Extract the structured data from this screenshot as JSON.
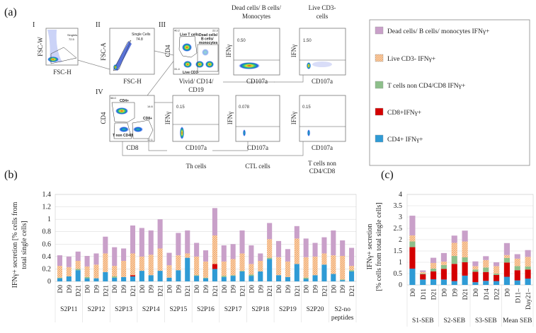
{
  "panels": {
    "a": "(a)",
    "b": "(b)",
    "c": "(c)"
  },
  "flow": {
    "roman": [
      "I",
      "II",
      "III",
      "IV"
    ],
    "plot1": {
      "y": "FSC-W",
      "x": "FSC-H",
      "gate": "Singlets",
      "value": "72.5"
    },
    "plot2": {
      "y": "FSC-A",
      "x": "FSC-H",
      "gate": "Single Cells",
      "value": "74.8"
    },
    "plot3": {
      "y": "CD4",
      "x1": "Vivid/ CD14/",
      "x2": "CD19",
      "gate_live": "Live T cells",
      "gate_dead1": "Dead cells/",
      "gate_dead2": "B cells/",
      "gate_dead3": "monocytes",
      "gate_cd3neg": "Live CD3-",
      "v1": "40.2",
      "v2": "22.3",
      "v3": "31.4"
    },
    "plot4": {
      "y": "CD4",
      "x": "CD8",
      "gate_cd4": "CD4+",
      "gate_cd8": "CD8+",
      "gate_non": "T non CD4/8",
      "v1": "58.0",
      "v2": "14.6",
      "v3": "12.1"
    },
    "dead": {
      "title1": "Dead cells/ B cells/",
      "title2": "Monocytes",
      "y": "IFNγ",
      "x": "CD107a",
      "value": "0.50"
    },
    "live": {
      "title1": "Live CD3-",
      "title2": "cells",
      "y": "IFNγ",
      "x": "CD107a",
      "value": "1.50"
    },
    "th": {
      "y": "IFNγ",
      "x": "CD107a",
      "value": "0.15",
      "caption": "Th cells"
    },
    "ctl": {
      "y": "IFNγ",
      "x": "CD107a",
      "value": "0.078",
      "caption": "CTL cells"
    },
    "non": {
      "y": "IFNγ",
      "x": "CD107a",
      "value": "0.15",
      "caption1": "T cells non",
      "caption2": "CD4/CD8"
    }
  },
  "legend": [
    {
      "label": "Dead cells/ B cells/ monocytes IFNγ+",
      "color": "#c9a0c9",
      "hatched": false
    },
    {
      "label": "Live CD3- IFNγ+",
      "color": "#f7c08e",
      "hatched": true
    },
    {
      "label": "T cells non CD4/CD8 IFNγ+",
      "color": "#8dbf8a",
      "hatched": false
    },
    {
      "label": "CD8+IFNγ+",
      "color": "#d40000",
      "hatched": false
    },
    {
      "label": "CD4+ IFNγ+",
      "color": "#2f9bd5",
      "hatched": false
    }
  ],
  "chart_data": [
    {
      "type": "bar",
      "stacked": true,
      "ylabel": [
        "IFNγ+ secretion [% cells from",
        "total single cells]"
      ],
      "ylim": [
        0,
        1.4
      ],
      "yticks": [
        "0",
        "0.2",
        "0.4",
        "0.6",
        "0.8",
        "1",
        "1.2",
        "1.4"
      ],
      "grid": true,
      "groups": [
        {
          "label": [
            "S2P11"
          ],
          "days": [
            "D0",
            "D9",
            "D21"
          ]
        },
        {
          "label": [
            "S2P12"
          ],
          "days": [
            "D0",
            "D9",
            "D21"
          ]
        },
        {
          "label": [
            "S2P13"
          ],
          "days": [
            "D0",
            "D9",
            "D21"
          ]
        },
        {
          "label": [
            "S2P14"
          ],
          "days": [
            "D0",
            "D9",
            "D21"
          ]
        },
        {
          "label": [
            "S2P15"
          ],
          "days": [
            "D0",
            "D9",
            "D21"
          ]
        },
        {
          "label": [
            "S2P16"
          ],
          "days": [
            "D0",
            "D9",
            "D21"
          ]
        },
        {
          "label": [
            "S2P17"
          ],
          "days": [
            "D0",
            "D9",
            "D21"
          ]
        },
        {
          "label": [
            "S2P18"
          ],
          "days": [
            "D0",
            "D9",
            "D21"
          ]
        },
        {
          "label": [
            "S2P19"
          ],
          "days": [
            "D0",
            "D9",
            "D21"
          ]
        },
        {
          "label": [
            "S2P20"
          ],
          "days": [
            "D0",
            "D9",
            "D21"
          ]
        },
        {
          "label": [
            "S2-no",
            "peptides"
          ],
          "days": [
            "D0",
            "D9",
            "D21"
          ]
        }
      ],
      "series": [
        {
          "name": "CD4+ IFNγ+",
          "values": [
            0.05,
            0.08,
            0.18,
            0.05,
            0.05,
            0.15,
            0.06,
            0.07,
            0.08,
            0.17,
            0.1,
            0.17,
            0.06,
            0.18,
            0.38,
            0.09,
            0.05,
            0.2,
            0.07,
            0.09,
            0.16,
            0.09,
            0.16,
            0.36,
            0.1,
            0.07,
            0.28,
            0.04,
            0.1,
            0.27,
            0.12,
            0.02,
            0.16
          ]
        },
        {
          "name": "CD8+IFNγ+",
          "values": [
            0,
            0,
            0,
            0,
            0,
            0,
            0,
            0,
            0.02,
            0,
            0,
            0,
            0,
            0,
            0,
            0,
            0,
            0.08,
            0,
            0,
            0,
            0,
            0,
            0,
            0,
            0,
            0,
            0,
            0,
            0,
            0,
            0,
            0
          ]
        },
        {
          "name": "T cells non CD4/CD8 IFNγ+",
          "values": [
            0.01,
            0,
            0.02,
            0.02,
            0,
            0,
            0.02,
            0,
            0,
            0,
            0,
            0,
            0,
            0,
            0,
            0.01,
            0.01,
            0,
            0.02,
            0.01,
            0.01,
            0.02,
            0,
            0.02,
            0,
            0,
            0,
            0.02,
            0,
            0,
            0,
            0.01,
            0.02
          ]
        },
        {
          "name": "Live CD3- IFNγ+",
          "values": [
            0.19,
            0.15,
            0.13,
            0.17,
            0.22,
            0.3,
            0.17,
            0.26,
            0.35,
            0.23,
            0.33,
            0.36,
            0.2,
            0.24,
            0.07,
            0.3,
            0.26,
            0.46,
            0.23,
            0.26,
            0.28,
            0.17,
            0.17,
            0.3,
            0.29,
            0.25,
            0.41,
            0.33,
            0.3,
            0.18,
            0.3,
            0.38,
            0.07
          ]
        },
        {
          "name": "Dead cells/ B cells/ monocytes IFNγ+",
          "values": [
            0.17,
            0.17,
            0.15,
            0.17,
            0.18,
            0.27,
            0.3,
            0.2,
            0.45,
            0.46,
            0.39,
            0.47,
            0.2,
            0.36,
            0.37,
            0.22,
            0.18,
            0.44,
            0.26,
            0.24,
            0.37,
            0.3,
            0.12,
            0.26,
            0.26,
            0.2,
            0.2,
            0.3,
            0.22,
            0.26,
            0.4,
            0.25,
            0.29
          ]
        }
      ]
    },
    {
      "type": "bar",
      "stacked": true,
      "ylabel": [
        "IFNγ+ secretion",
        "[% cells from total single cells]"
      ],
      "ylim": [
        0,
        4
      ],
      "yticks": [
        "0",
        "0.5",
        "1",
        "1.5",
        "2",
        "2.5",
        "3",
        "3.5",
        "4"
      ],
      "grid": true,
      "groups": [
        {
          "label": [
            "S1-SEB"
          ],
          "days": [
            "D0",
            "D11",
            "D21"
          ]
        },
        {
          "label": [
            "S2-SEB"
          ],
          "days": [
            "D0",
            "D9",
            "D21"
          ]
        },
        {
          "label": [
            "S3-SEB"
          ],
          "days": [
            "D0",
            "D14",
            "D22"
          ]
        },
        {
          "label": [
            "Mean SEB"
          ],
          "days": [
            "D0",
            "D11–",
            "Day21–"
          ]
        }
      ],
      "series": [
        {
          "name": "CD4+ IFNγ+",
          "values": [
            0.72,
            0.24,
            0.25,
            0.24,
            0.17,
            0.41,
            0.12,
            0.18,
            0.17,
            0.36,
            0.2,
            0.28
          ]
        },
        {
          "name": "CD8+IFNγ+",
          "values": [
            0.95,
            0.23,
            0.35,
            0.47,
            0.76,
            0.59,
            0.46,
            0.39,
            0.27,
            0.63,
            0.45,
            0.4
          ]
        },
        {
          "name": "T cells non CD4/CD8 IFNγ+",
          "values": [
            0.25,
            0.03,
            0.12,
            0.17,
            0.35,
            0.22,
            0.1,
            0.2,
            0.06,
            0.2,
            0.18,
            0.13
          ]
        },
        {
          "name": "Live CD3- IFNγ+",
          "values": [
            0.27,
            0.07,
            0.25,
            0.15,
            0.58,
            0.7,
            0.15,
            0.33,
            0.33,
            0.13,
            0.33,
            0.43
          ]
        },
        {
          "name": "Dead cells/ B cells/ monocytes IFNγ+",
          "values": [
            0.87,
            0.07,
            0.23,
            0.38,
            0.32,
            0.48,
            0.21,
            0.17,
            0.17,
            0.53,
            0.2,
            0.3
          ]
        }
      ]
    }
  ]
}
